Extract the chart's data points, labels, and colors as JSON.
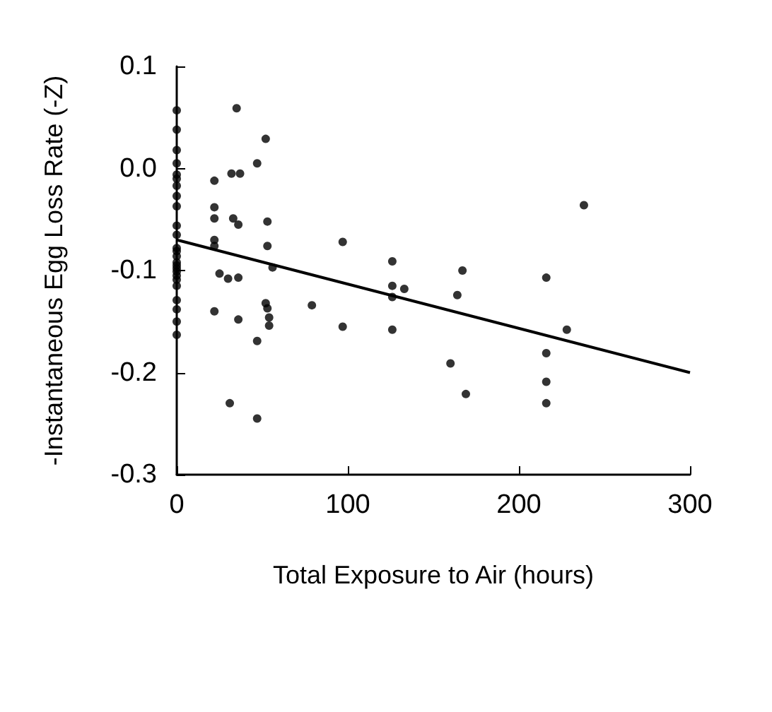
{
  "chart_data": {
    "type": "scatter",
    "xlabel": "Total Exposure to Air (hours)",
    "ylabel": "-Instantaneous Egg Loss Rate (-Z)",
    "xlim": [
      0,
      300
    ],
    "xticks": [
      0,
      100,
      200,
      300
    ],
    "ylim": [
      -0.3,
      0.1
    ],
    "yticks": [
      -0.3,
      -0.2,
      -0.1,
      {
        "value": 0,
        "label": "0.0"
      },
      0.1
    ],
    "marker": "circle",
    "series": [
      {
        "color": "#000000",
        "x": [
          0,
          0,
          0,
          0,
          0,
          0,
          0,
          0,
          0,
          0,
          0,
          0,
          0,
          0,
          0,
          0,
          0,
          0,
          0,
          0,
          0,
          0,
          0,
          0,
          0,
          35,
          52,
          47,
          32,
          37,
          22,
          22,
          22,
          33,
          36,
          53,
          22,
          22,
          53,
          97,
          126,
          56,
          25,
          30,
          36,
          126,
          133,
          126,
          52,
          53,
          79,
          22,
          36,
          54,
          54,
          97,
          126,
          47,
          31,
          47,
          238,
          167,
          216,
          164,
          228,
          160,
          216,
          216,
          169,
          216
        ],
        "values": [
          0.057,
          0.038,
          0.018,
          0.005,
          -0.006,
          -0.01,
          -0.017,
          -0.027,
          -0.037,
          -0.056,
          -0.065,
          -0.078,
          -0.081,
          -0.086,
          -0.092,
          -0.095,
          -0.098,
          -0.101,
          -0.105,
          -0.109,
          -0.115,
          -0.129,
          -0.138,
          -0.15,
          -0.163,
          0.059,
          0.029,
          0.005,
          -0.005,
          -0.005,
          -0.012,
          -0.038,
          -0.049,
          -0.049,
          -0.055,
          -0.052,
          -0.07,
          -0.076,
          -0.076,
          -0.072,
          -0.091,
          -0.097,
          -0.103,
          -0.108,
          -0.107,
          -0.115,
          -0.118,
          -0.126,
          -0.132,
          -0.137,
          -0.134,
          -0.14,
          -0.148,
          -0.146,
          -0.154,
          -0.155,
          -0.158,
          -0.169,
          -0.23,
          -0.245,
          -0.036,
          -0.1,
          -0.107,
          -0.124,
          -0.158,
          -0.191,
          -0.181,
          -0.209,
          -0.221,
          -0.23
        ]
      },
      {
        "type": "line",
        "color": "#000000",
        "marker": "none",
        "line_style": "solid",
        "x": [
          0,
          300
        ],
        "values": [
          -0.07,
          -0.2
        ]
      }
    ]
  }
}
